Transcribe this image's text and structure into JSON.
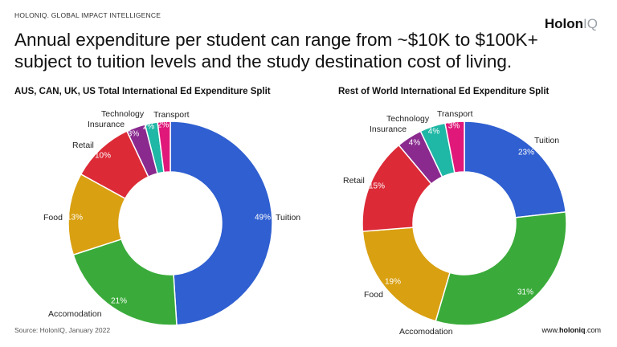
{
  "header": {
    "org": "HOLONIQ. GLOBAL IMPACT INTELLIGENCE",
    "brand_main": "Holon",
    "brand_suffix": "IQ",
    "headline": "Annual expenditure per student can range from ~$10K to $100K+ subject to tuition levels and the study destination cost of living."
  },
  "footer": {
    "source": "Source: HolonIQ, January 2022",
    "website_prefix": "www.",
    "website_brand": "holoniq",
    "website_suffix": ".com"
  },
  "colors": {
    "Tuition": "#2f5fd0",
    "Accomodation": "#3aab3a",
    "Food": "#d9a011",
    "Retail": "#dc2a37",
    "Insurance": "#8a2a8f",
    "Technology": "#1fb7a5",
    "Transport": "#e0187a"
  },
  "chart_data": [
    {
      "type": "pie",
      "title": "AUS, CAN, UK, US Total International Ed Expenditure Split",
      "slices": [
        {
          "label": "Tuition",
          "value": 49,
          "display": "49%"
        },
        {
          "label": "Accomodation",
          "value": 21,
          "display": "21%"
        },
        {
          "label": "Food",
          "value": 13,
          "display": "13%"
        },
        {
          "label": "Retail",
          "value": 10,
          "display": "10%"
        },
        {
          "label": "Insurance",
          "value": 3,
          "display": "3%"
        },
        {
          "label": "Technology",
          "value": 2,
          "display": "2%"
        },
        {
          "label": "Transport",
          "value": 2,
          "display": "2%"
        }
      ]
    },
    {
      "type": "pie",
      "title": "Rest of World International Ed Expenditure Split",
      "slices": [
        {
          "label": "Tuition",
          "value": 23,
          "display": "23%"
        },
        {
          "label": "Accomodation",
          "value": 31,
          "display": "31%"
        },
        {
          "label": "Food",
          "value": 19,
          "display": "19%"
        },
        {
          "label": "Retail",
          "value": 15,
          "display": "15%"
        },
        {
          "label": "Insurance",
          "value": 4,
          "display": "4%"
        },
        {
          "label": "Technology",
          "value": 4,
          "display": "4%"
        },
        {
          "label": "Transport",
          "value": 3,
          "display": "3%"
        }
      ]
    }
  ]
}
